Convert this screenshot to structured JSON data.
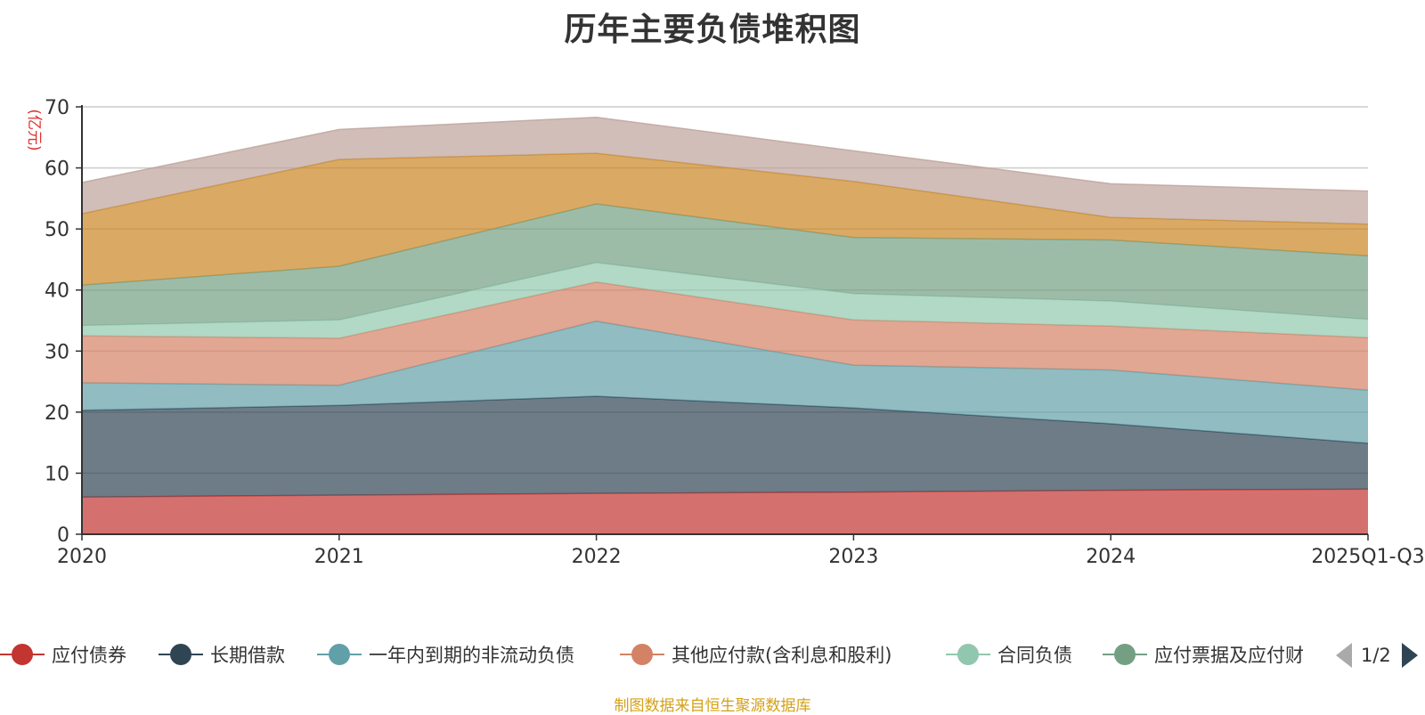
{
  "chart_data": {
    "type": "area",
    "stacked": true,
    "title": "历年主要负债堆积图",
    "ylabel": "(亿元)",
    "xlabel": "",
    "ylim": [
      0,
      70
    ],
    "yticks": [
      0,
      10,
      20,
      30,
      40,
      50,
      60,
      70
    ],
    "grid": true,
    "categories": [
      "2020",
      "2021",
      "2022",
      "2023",
      "2024",
      "2025Q1-Q3"
    ],
    "series": [
      {
        "name": "应付债券",
        "color": "#c23531",
        "values": [
          6.1,
          6.4,
          6.7,
          6.9,
          7.2,
          7.4
        ]
      },
      {
        "name": "长期借款",
        "color": "#2f4554",
        "values": [
          14.2,
          14.7,
          15.9,
          13.8,
          10.9,
          7.5
        ]
      },
      {
        "name": "一年内到期的非流动负债",
        "color": "#61a0a8",
        "values": [
          4.5,
          3.3,
          12.3,
          7.0,
          8.8,
          8.7
        ]
      },
      {
        "name": "其他应付款(含利息和股利)",
        "color": "#d48265",
        "values": [
          7.7,
          7.7,
          6.4,
          7.4,
          7.2,
          8.6
        ]
      },
      {
        "name": "合同负债",
        "color": "#91c7ae",
        "values": [
          1.7,
          3.0,
          3.2,
          4.3,
          4.1,
          3.0
        ]
      },
      {
        "name": "应付票据及应付账款",
        "color": "#749f83",
        "values": [
          6.6,
          8.8,
          9.6,
          9.2,
          10.0,
          10.4
        ]
      },
      {
        "name": "",
        "color": "#ca8622",
        "values": [
          11.7,
          17.5,
          8.3,
          9.2,
          3.7,
          5.2
        ]
      },
      {
        "name": "",
        "color": "#bda29a",
        "values": [
          5.1,
          4.9,
          5.9,
          5.0,
          5.5,
          5.4
        ]
      }
    ]
  },
  "legend": {
    "items": [
      {
        "label": "应付债券",
        "color": "#c23531"
      },
      {
        "label": "长期借款",
        "color": "#2f4554"
      },
      {
        "label": "一年内到期的非流动负债",
        "color": "#61a0a8"
      },
      {
        "label": "其他应付款(含利息和股利)",
        "color": "#d48265"
      },
      {
        "label": "合同负债",
        "color": "#91c7ae"
      },
      {
        "label": "应付票据及应付财",
        "color": "#749f83"
      }
    ],
    "page_text": "1/2"
  },
  "source_text": "制图数据来自恒生聚源数据库"
}
